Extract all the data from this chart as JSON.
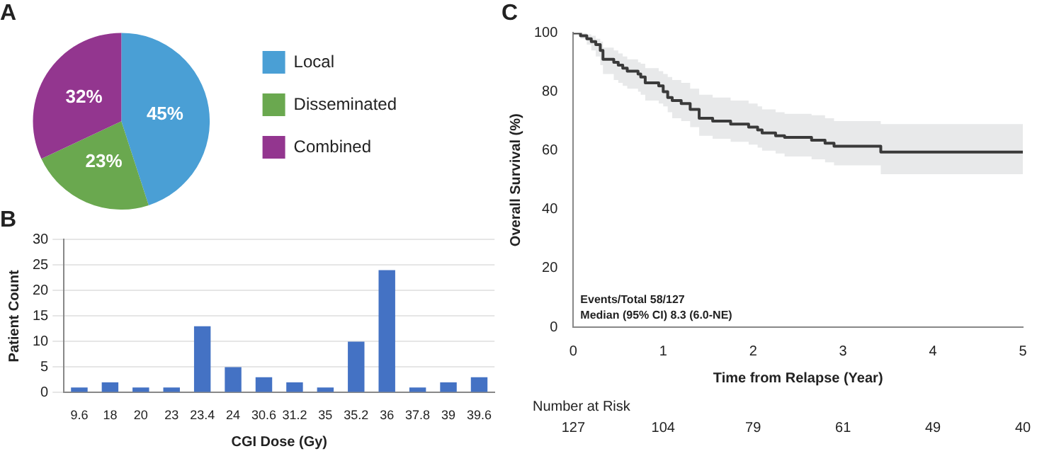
{
  "chart_data": [
    {
      "type": "pie",
      "title": "A",
      "categories": [
        "Local",
        "Disseminated",
        "Combined"
      ],
      "values": [
        45,
        23,
        32
      ],
      "colors": [
        "#4a9fd5",
        "#6aa84f",
        "#93368f"
      ],
      "value_labels": [
        "45%",
        "23%",
        "32%"
      ],
      "legend": "right"
    },
    {
      "type": "bar",
      "title": "B",
      "xlabel": "CGI Dose (Gy)",
      "ylabel": "Patient Count",
      "categories": [
        "9.6",
        "18",
        "20",
        "23",
        "23.4",
        "24",
        "30.6",
        "31.2",
        "35",
        "35.2",
        "36",
        "37.8",
        "39",
        "39.6"
      ],
      "values": [
        1,
        2,
        1,
        1,
        13,
        5,
        3,
        2,
        1,
        10,
        24,
        1,
        2,
        3
      ],
      "color": "#4472c4",
      "ylim": [
        0,
        30
      ],
      "yticks": [
        0,
        5,
        10,
        15,
        20,
        25,
        30
      ],
      "grid": "y"
    },
    {
      "type": "step",
      "title": "C",
      "xlabel": "Time from Relapse (Year)",
      "ylabel": "Overall Survival (%)",
      "xlim": [
        0,
        5
      ],
      "xticks": [
        0,
        1,
        2,
        3,
        4,
        5
      ],
      "ylim": [
        0,
        100
      ],
      "yticks": [
        0,
        20,
        40,
        60,
        80,
        100
      ],
      "grid": false,
      "series": [
        {
          "color": "#3a3a3a",
          "x": [
            0,
            0.08,
            0.15,
            0.2,
            0.25,
            0.3,
            0.33,
            0.45,
            0.5,
            0.55,
            0.6,
            0.72,
            0.75,
            0.8,
            0.95,
            1.0,
            1.05,
            1.1,
            1.2,
            1.3,
            1.4,
            1.55,
            1.75,
            1.95,
            2.05,
            2.1,
            2.25,
            2.35,
            2.65,
            2.8,
            2.9,
            3.42,
            5
          ],
          "values": [
            100,
            99,
            98,
            97,
            96,
            94,
            91,
            90,
            89,
            88,
            87,
            86,
            85,
            83,
            82,
            80,
            78,
            77,
            76,
            74,
            71,
            70,
            69,
            68,
            67,
            66,
            65,
            64.5,
            63.5,
            62.5,
            61.5,
            59.5,
            59.5
          ],
          "lower": [
            100,
            98,
            96,
            94,
            92,
            89,
            86,
            84,
            83,
            82,
            81,
            80,
            79,
            77,
            76,
            75,
            73,
            71,
            70,
            68,
            65,
            64,
            63,
            62,
            61,
            60,
            59,
            58,
            57,
            56,
            55,
            52,
            52
          ],
          "upper": [
            100,
            100,
            99.5,
            99,
            98,
            97,
            95,
            94,
            93,
            92,
            91,
            90,
            89.5,
            88,
            87,
            86,
            85,
            84,
            83,
            81,
            79,
            78,
            77,
            76,
            75,
            74,
            73,
            72.5,
            72,
            71,
            70,
            69,
            69
          ]
        }
      ],
      "annotations": [
        "Events/Total 58/127",
        "Median (95% CI) 8.3 (6.0-NE)",
        "Number at Risk",
        "127",
        "104",
        "79",
        "61",
        "49",
        "40"
      ]
    }
  ]
}
